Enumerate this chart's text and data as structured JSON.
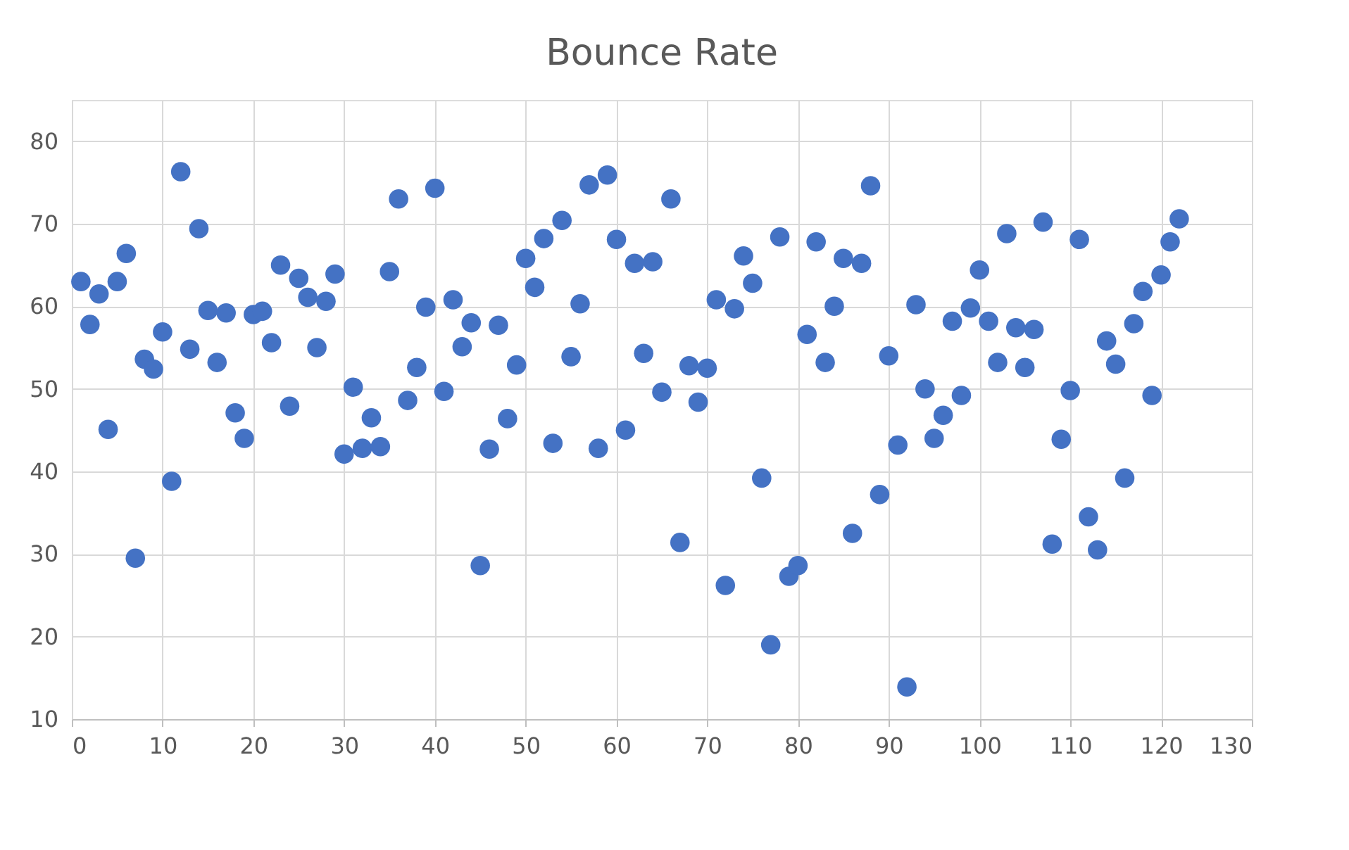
{
  "chart_data": {
    "type": "scatter",
    "title": "Bounce Rate",
    "x": [
      1,
      2,
      3,
      4,
      5,
      6,
      7,
      8,
      9,
      10,
      11,
      12,
      13,
      14,
      15,
      16,
      17,
      18,
      19,
      20,
      21,
      22,
      23,
      24,
      25,
      26,
      27,
      28,
      29,
      30,
      31,
      32,
      33,
      34,
      35,
      36,
      37,
      38,
      39,
      40,
      41,
      42,
      43,
      44,
      45,
      46,
      47,
      48,
      49,
      50,
      51,
      52,
      53,
      54,
      55,
      56,
      57,
      58,
      59,
      60,
      61,
      62,
      63,
      64,
      65,
      66,
      67,
      68,
      69,
      70,
      71,
      72,
      73,
      74,
      75,
      76,
      77,
      78,
      79,
      80,
      81,
      82,
      83,
      84,
      85,
      86,
      87,
      88,
      89,
      90,
      91,
      92,
      93,
      94,
      95,
      96,
      97,
      98,
      99,
      100,
      101,
      102,
      103,
      104,
      105,
      106,
      107,
      108,
      109,
      110,
      111,
      112,
      113,
      114,
      115,
      116,
      117,
      118,
      119,
      120,
      121,
      122
    ],
    "series": [
      {
        "color": "#4472c4",
        "values": [
          63,
          57.8,
          61.5,
          45.1,
          63,
          66.4,
          29.5,
          53.6,
          52.4,
          56.9,
          38.8,
          76.3,
          54.8,
          69.4,
          59.5,
          53.2,
          59.2,
          47.1,
          44,
          59,
          59.4,
          55.6,
          65,
          47.9,
          63.4,
          61.1,
          55,
          60.6,
          63.9,
          42.1,
          50.2,
          42.8,
          46.5,
          43,
          64.2,
          73,
          48.6,
          52.6,
          59.9,
          74.3,
          49.7,
          60.8,
          55.1,
          58,
          28.6,
          42.7,
          57.7,
          46.4,
          52.9,
          65.8,
          62.3,
          68.2,
          43.4,
          70.4,
          53.9,
          60.3,
          74.7,
          42.8,
          75.9,
          68.1,
          45,
          65.2,
          54.3,
          65.4,
          49.6,
          73,
          31.4,
          52.8,
          48.4,
          52.5,
          60.8,
          26.2,
          59.7,
          66.1,
          62.8,
          39.2,
          19,
          68.4,
          27.3,
          28.6,
          56.6,
          67.8,
          53.2,
          60,
          65.8,
          32.5,
          65.2,
          74.6,
          37.2,
          54,
          43.2,
          13.9,
          60.2,
          50,
          44,
          46.8,
          58.2,
          49.2,
          59.8,
          64.4,
          58.2,
          53.2,
          68.8,
          57.4,
          52.6,
          57.2,
          70.2,
          31.2,
          43.9,
          49.8,
          68.1,
          34.5,
          30.5,
          55.8,
          53,
          39.2,
          57.9,
          61.8,
          49.2,
          63.8,
          67.8,
          70.6
        ]
      }
    ],
    "xlim": [
      0,
      130
    ],
    "xticks": [
      0,
      10,
      20,
      30,
      40,
      50,
      60,
      70,
      80,
      90,
      100,
      110,
      120,
      130
    ],
    "ylim": [
      10,
      85
    ],
    "yticks": [
      10,
      20,
      30,
      40,
      50,
      60,
      70,
      80
    ],
    "grid": true,
    "legend": false,
    "marker": "circle"
  }
}
